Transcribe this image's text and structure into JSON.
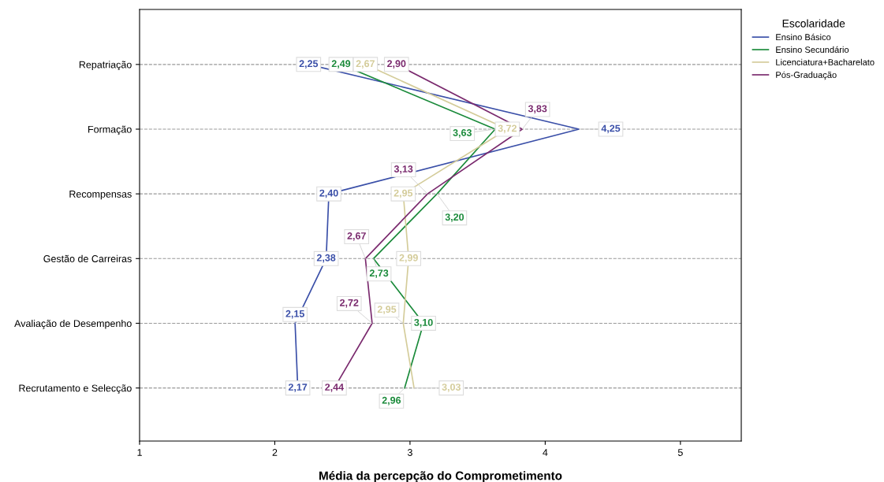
{
  "chart_data": {
    "type": "line",
    "orientation": "horizontal",
    "xlabel": "Média da percepção do Comprometimento",
    "legend_title": "Escolaridade",
    "legend": "top right",
    "categories": [
      "Repatriação",
      "Formação",
      "Recompensas",
      "Gestão de Carreiras",
      "Avaliação de Desempenho",
      "Recrutamento e Selecção"
    ],
    "xlim": [
      1,
      5.45
    ],
    "xticks": [
      1,
      2,
      3,
      4,
      5
    ],
    "grid": "y",
    "line_style": "solid",
    "series": [
      {
        "name": "Ensino Básico",
        "color": "#3a4fa8",
        "values": [
          2.25,
          4.25,
          2.4,
          2.38,
          2.15,
          2.17
        ],
        "value_labels": [
          "2,25",
          "4,25",
          "2,40",
          "2,38",
          "2,15",
          "2,17"
        ]
      },
      {
        "name": "Ensino Secundário",
        "color": "#1a8a3a",
        "values": [
          2.49,
          3.63,
          3.2,
          2.73,
          3.1,
          2.96
        ],
        "value_labels": [
          "2,49",
          "3,63",
          "3,20",
          "2,73",
          "3,10",
          "2,96"
        ]
      },
      {
        "name": "Licenciatura+Bacharelato",
        "color": "#d4cc9a",
        "values": [
          2.67,
          3.72,
          2.95,
          2.99,
          2.95,
          3.03
        ],
        "value_labels": [
          "2,67",
          "3,72",
          "2,95",
          "2,99",
          "2,95",
          "3,03"
        ]
      },
      {
        "name": "Pós-Graduação",
        "color": "#7a2a6e",
        "values": [
          2.9,
          3.83,
          3.13,
          2.67,
          2.72,
          2.44
        ],
        "value_labels": [
          "2,90",
          "3,83",
          "3,13",
          "2,67",
          "2,72",
          "2,44"
        ]
      }
    ]
  }
}
